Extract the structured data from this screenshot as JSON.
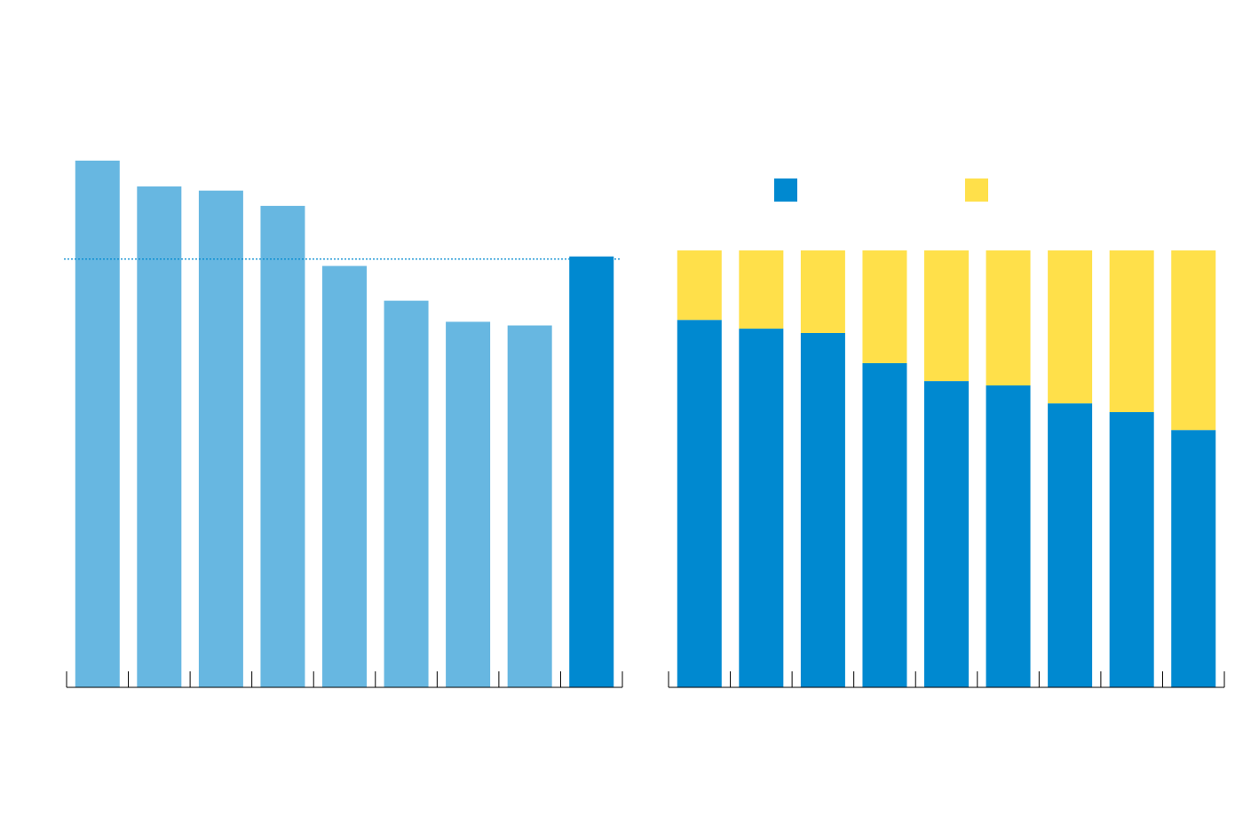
{
  "chart_data": [
    {
      "type": "bar",
      "categories": [
        null,
        null,
        null,
        null,
        null,
        null,
        null,
        null,
        null
      ],
      "values": [
        100,
        95.1,
        94.3,
        91.4,
        80.0,
        73.4,
        69.4,
        68.7,
        81.8
      ],
      "colors": [
        "#67b7e1",
        "#67b7e1",
        "#67b7e1",
        "#67b7e1",
        "#67b7e1",
        "#67b7e1",
        "#67b7e1",
        "#67b7e1",
        "#0089d0"
      ],
      "ylim": [
        0,
        117
      ],
      "reference_line": 81.3,
      "reference_color": "#0089d0"
    },
    {
      "type": "stacked_bar",
      "categories": [
        null,
        null,
        null,
        null,
        null,
        null,
        null,
        null,
        null
      ],
      "series": [
        {
          "color": "#0089d0",
          "values": [
            84.1,
            82.1,
            81.1,
            74.2,
            70.1,
            69.1,
            65.0,
            63.0,
            58.9
          ]
        },
        {
          "color": "#ffe04a",
          "values": [
            15.9,
            17.9,
            18.9,
            25.8,
            29.9,
            30.9,
            35.0,
            37.0,
            41.1
          ]
        }
      ],
      "ylim": [
        0,
        100
      ],
      "legend": "top"
    }
  ]
}
